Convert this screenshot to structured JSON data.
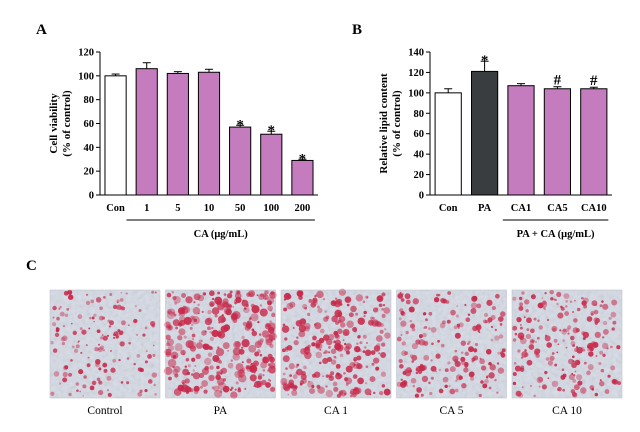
{
  "panels": {
    "a": "A",
    "b": "B",
    "c": "C"
  },
  "chart_data": [
    {
      "type": "bar",
      "title": "",
      "xlabel": "CA (μg/mL)",
      "ylabel_line1": "Cell viability",
      "ylabel_line2": "(% of control)",
      "ylim": [
        0,
        120
      ],
      "yticks": [
        "0",
        "20",
        "40",
        "60",
        "80",
        "100",
        "120"
      ],
      "categories": [
        "Con",
        "1",
        "5",
        "10",
        "50",
        "100",
        "200"
      ],
      "values": [
        100,
        106,
        102,
        103,
        57,
        51,
        29
      ],
      "errors": [
        1.5,
        5,
        1.5,
        2.5,
        1.5,
        2.5,
        1
      ],
      "markers": [
        "",
        "",
        "",
        "",
        "*",
        "*",
        "*"
      ],
      "colors": [
        "#ffffff",
        "#c47cbf",
        "#c47cbf",
        "#c47cbf",
        "#c47cbf",
        "#c47cbf",
        "#c47cbf"
      ],
      "grid": false,
      "legend": "none"
    },
    {
      "type": "bar",
      "title": "",
      "xlabel": "PA + CA (μg/mL)",
      "ylabel_line1": "Relative lipid content",
      "ylabel_line2": "(% of control)",
      "ylim": [
        0,
        140
      ],
      "yticks": [
        "0",
        "20",
        "40",
        "60",
        "80",
        "100",
        "120",
        "140"
      ],
      "categories": [
        "Con",
        "PA",
        "CA1",
        "CA5",
        "CA10"
      ],
      "values": [
        100,
        121,
        107,
        104,
        104
      ],
      "errors": [
        4,
        10,
        2,
        2,
        1.5
      ],
      "markers": [
        "",
        "*",
        "",
        "#",
        "#"
      ],
      "colors": [
        "#ffffff",
        "#3a3d40",
        "#c47cbf",
        "#c47cbf",
        "#c47cbf"
      ],
      "grid": false,
      "legend": "none"
    }
  ],
  "micrographs": {
    "labels": [
      "Control",
      "PA",
      "CA 1",
      "CA 5",
      "CA 10"
    ],
    "stain_level": [
      0.35,
      0.95,
      0.75,
      0.5,
      0.55
    ],
    "stain_color": "#c8284a",
    "background_color": "#d6dbe6"
  }
}
